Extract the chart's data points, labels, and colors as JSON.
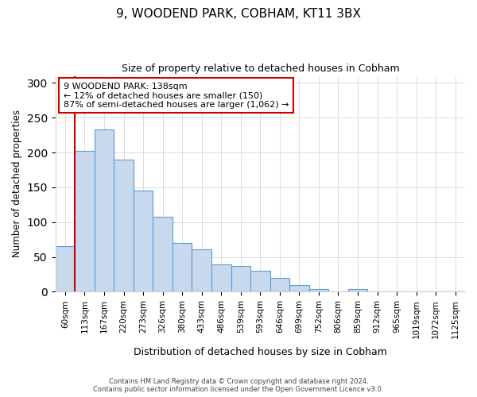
{
  "title": "9, WOODEND PARK, COBHAM, KT11 3BX",
  "subtitle": "Size of property relative to detached houses in Cobham",
  "xlabel": "Distribution of detached houses by size in Cobham",
  "ylabel": "Number of detached properties",
  "bin_labels": [
    "60sqm",
    "113sqm",
    "167sqm",
    "220sqm",
    "273sqm",
    "326sqm",
    "380sqm",
    "433sqm",
    "486sqm",
    "539sqm",
    "593sqm",
    "646sqm",
    "699sqm",
    "752sqm",
    "806sqm",
    "859sqm",
    "912sqm",
    "965sqm",
    "1019sqm",
    "1072sqm",
    "1125sqm"
  ],
  "bar_values": [
    65,
    202,
    233,
    190,
    145,
    108,
    70,
    61,
    39,
    37,
    30,
    20,
    10,
    4,
    0,
    4,
    0,
    1,
    0,
    0,
    1
  ],
  "bar_color": "#c9d9ed",
  "bar_edge_color": "#5b9bd5",
  "vline_x": 1.0,
  "vline_color": "#cc0000",
  "annotation_text": "9 WOODEND PARK: 138sqm\n← 12% of detached houses are smaller (150)\n87% of semi-detached houses are larger (1,062) →",
  "annotation_box_color": "#ffffff",
  "annotation_box_edge": "#cc0000",
  "footer_line1": "Contains HM Land Registry data © Crown copyright and database right 2024.",
  "footer_line2": "Contains public sector information licensed under the Open Government Licence v3.0.",
  "ylim": [
    0,
    310
  ],
  "background_color": "#ffffff",
  "grid_color": "#d0d0d0"
}
